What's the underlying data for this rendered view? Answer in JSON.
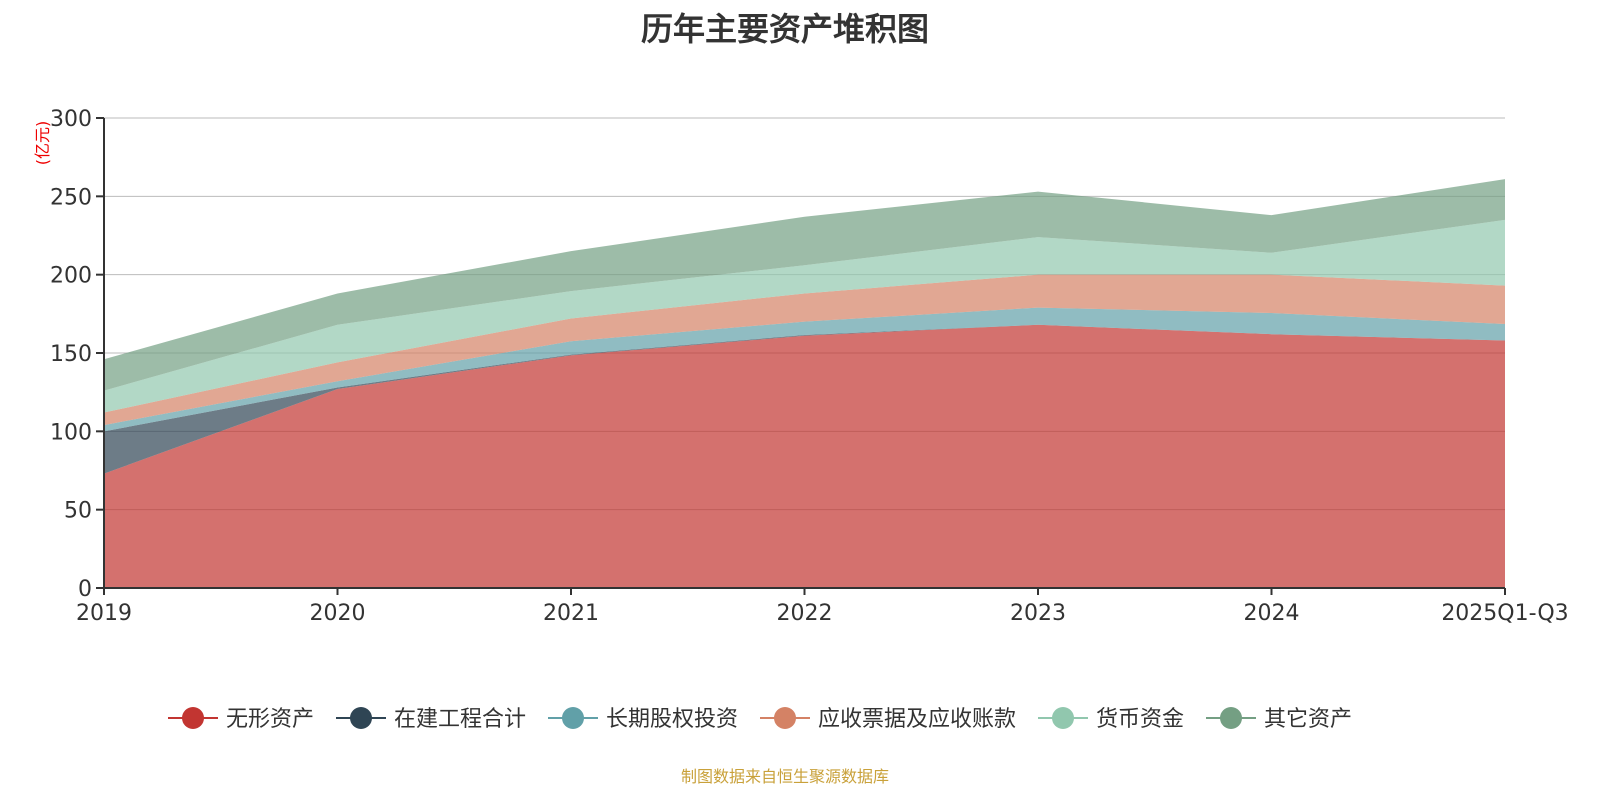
{
  "chart_data": {
    "type": "area",
    "stacked": true,
    "title": "历年主要资产堆积图",
    "ylabel": "(亿元)",
    "xlabel": "",
    "ylim": [
      0,
      300
    ],
    "yticks": [
      0,
      50,
      100,
      150,
      200,
      250,
      300
    ],
    "grid": true,
    "legend_position": "bottom",
    "categories": [
      "2019",
      "2020",
      "2021",
      "2022",
      "2023",
      "2024",
      "2025Q1-Q3"
    ],
    "series": [
      {
        "name": "无形资产",
        "color": "#c23531",
        "values": [
          73,
          127,
          148.5,
          161,
          168,
          162,
          158
        ]
      },
      {
        "name": "在建工程合计",
        "color": "#2f4554",
        "values": [
          27,
          1,
          0.5,
          0.5,
          0,
          0,
          0
        ]
      },
      {
        "name": "长期股权投资",
        "color": "#61a0a8",
        "values": [
          4,
          4,
          8.5,
          8.5,
          11,
          13.5,
          10.5
        ]
      },
      {
        "name": "应收票据及应收账款",
        "color": "#d48265",
        "values": [
          8,
          12,
          14.5,
          18,
          21,
          24.5,
          24.5
        ]
      },
      {
        "name": "货币资金",
        "color": "#91c7ae",
        "values": [
          14,
          24,
          17.5,
          18,
          24,
          14,
          42
        ]
      },
      {
        "name": "其它资产",
        "color": "#749f83",
        "values": [
          20,
          20,
          25.5,
          31,
          29,
          24,
          26
        ]
      }
    ]
  },
  "footer": "制图数据来自恒生聚源数据库"
}
